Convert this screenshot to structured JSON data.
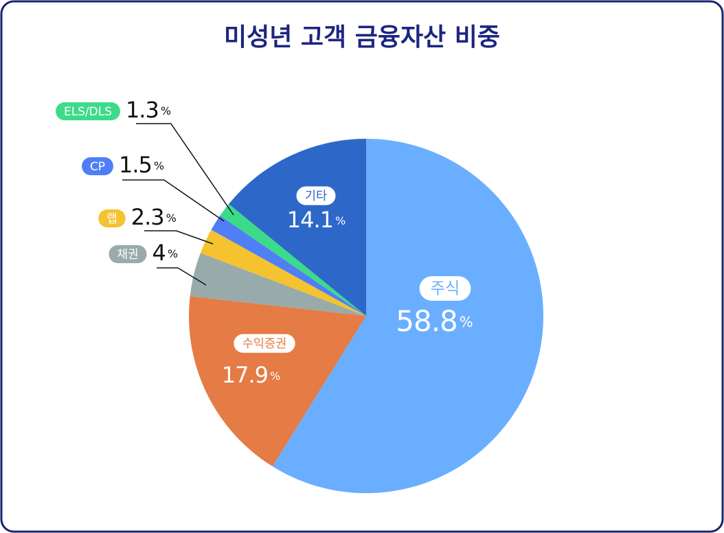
{
  "chart_data": {
    "type": "pie",
    "title": "미성년 고객 금융자산 비중",
    "unit": "%",
    "categories": [
      "주식",
      "수익증권",
      "채권",
      "랩",
      "CP",
      "ELS/DLS",
      "기타"
    ],
    "values": [
      58.8,
      17.9,
      4,
      2.3,
      1.5,
      1.3,
      14.1
    ],
    "colors": [
      "#6aaeff",
      "#e57b45",
      "#99aaaa",
      "#f5c230",
      "#4f7ef5",
      "#3cdb8a",
      "#2d68c9"
    ]
  }
}
